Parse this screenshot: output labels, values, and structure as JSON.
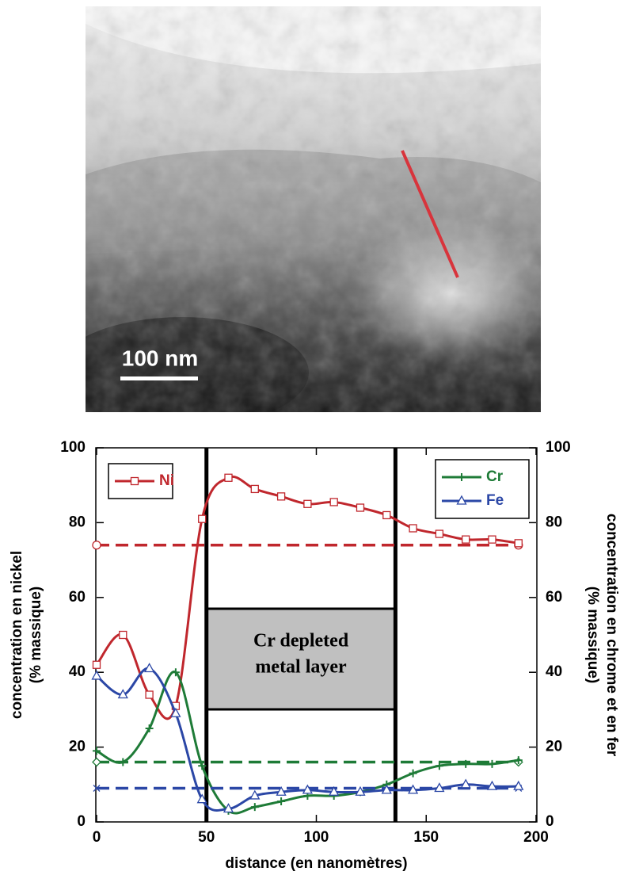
{
  "image": {
    "scale_bar": "100 nm"
  },
  "chart_data": {
    "type": "line",
    "xlabel": "distance (en nanomètres)",
    "ylabel": [
      "concentration en nickel",
      "(% massique)"
    ],
    "y2label": [
      "concentration en chrome et en fer",
      "(% massique)"
    ],
    "annotation": [
      "Cr depleted",
      "metal layer"
    ],
    "vlines": [
      50,
      136
    ],
    "xlim": [
      0,
      200
    ],
    "xticks": [
      0,
      50,
      100,
      150,
      200
    ],
    "ylim": [
      0,
      100
    ],
    "yticks": [
      0,
      20,
      40,
      60,
      80,
      100
    ],
    "y2lim": [
      0,
      100
    ],
    "y2ticks": [
      0,
      20,
      40,
      60,
      80,
      100
    ],
    "series": [
      {
        "name": "Ni",
        "color": "#c0272d",
        "marker": "square",
        "axis": "y",
        "reference": 74,
        "x": [
          0,
          12,
          24,
          36,
          48,
          60,
          72,
          84,
          96,
          108,
          120,
          132,
          144,
          156,
          168,
          180,
          192
        ],
        "values": [
          42,
          50,
          34,
          31,
          81,
          92,
          89,
          87,
          85,
          85.5,
          84,
          82,
          78.5,
          77,
          75.5,
          75.5,
          74.5
        ]
      },
      {
        "name": "Cr",
        "color": "#1e7b37",
        "marker": "plus",
        "axis": "y2",
        "reference": 16,
        "x": [
          0,
          12,
          24,
          36,
          48,
          60,
          72,
          84,
          96,
          108,
          120,
          132,
          144,
          156,
          168,
          180,
          192
        ],
        "values": [
          19,
          16,
          25,
          40,
          15,
          3,
          4,
          5.5,
          7,
          7,
          8,
          10,
          13,
          15,
          15.5,
          15.5,
          16.5
        ]
      },
      {
        "name": "Fe",
        "color": "#2b47a6",
        "marker": "triangle",
        "axis": "y2",
        "reference": 9,
        "x": [
          0,
          12,
          24,
          36,
          48,
          60,
          72,
          84,
          96,
          108,
          120,
          132,
          144,
          156,
          168,
          180,
          192
        ],
        "values": [
          39,
          34,
          41,
          29,
          6,
          3.5,
          7,
          8,
          8.5,
          8,
          8,
          8.5,
          8.5,
          9,
          10,
          9.5,
          9.5
        ]
      }
    ],
    "legend": [
      [
        "Ni"
      ],
      [
        "Cr",
        "Fe"
      ]
    ]
  }
}
